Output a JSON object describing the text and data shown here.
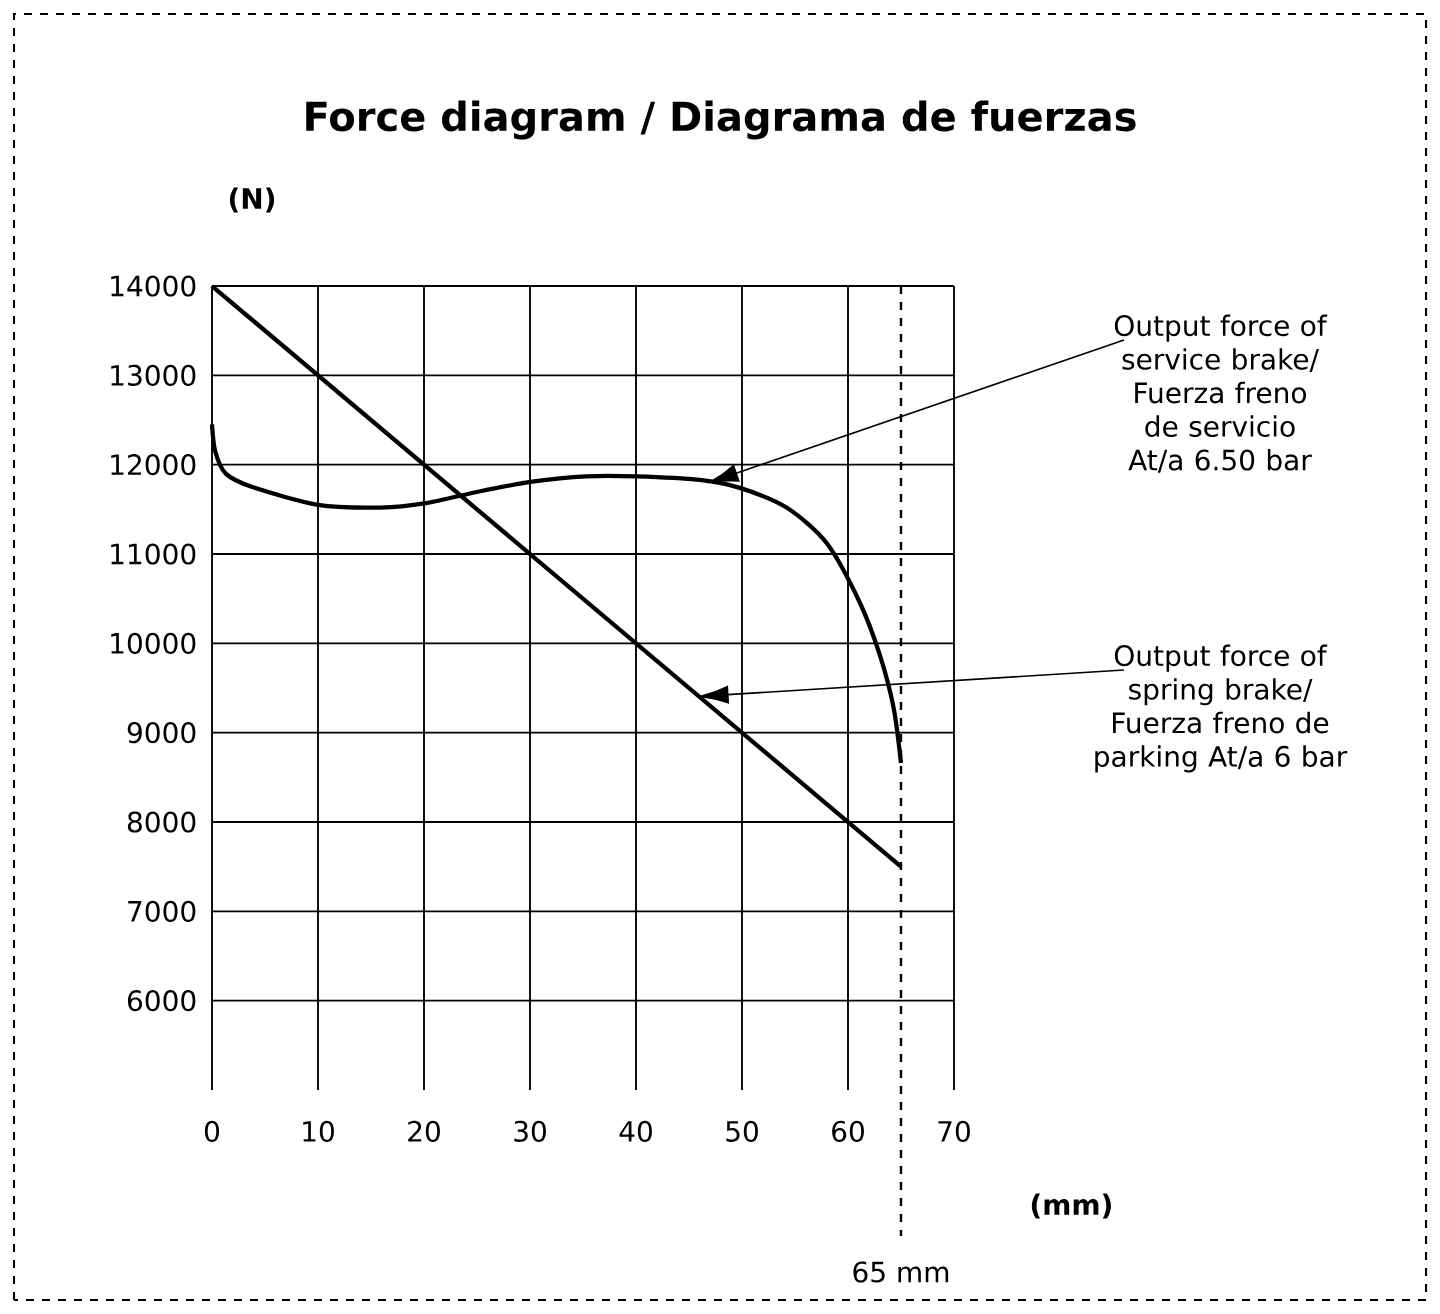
{
  "chart_data": {
    "type": "line",
    "title": "Force diagram / Diagrama de fuerzas",
    "xlabel": "(mm)",
    "ylabel": "(N)",
    "xlim": [
      0,
      70
    ],
    "xticks": [
      0,
      10,
      20,
      30,
      40,
      50,
      60,
      70
    ],
    "ylim": [
      5000,
      14000
    ],
    "yticks": [
      6000,
      7000,
      8000,
      9000,
      10000,
      11000,
      12000,
      13000,
      14000
    ],
    "grid": true,
    "marker": "none",
    "line_style": "solid",
    "series": [
      {
        "color": "#000000",
        "x": [
          0,
          0.3,
          1.3,
          3.8,
          10,
          15.8,
          20.2,
          25.2,
          30.2,
          35.3,
          40,
          46,
          49.8,
          54.2,
          58,
          61.1,
          63,
          64.3,
          65
        ],
        "values": [
          12450,
          12150,
          11900,
          11750,
          11550,
          11520,
          11570,
          11700,
          11810,
          11870,
          11870,
          11830,
          11740,
          11520,
          11120,
          10460,
          9870,
          9280,
          8660
        ]
      },
      {
        "color": "#000000",
        "x": [
          0,
          65
        ],
        "values": [
          14000,
          7500
        ]
      }
    ],
    "annotations": [
      "Output force of service brake/ Fuerza freno de servicio At/a 6.50 bar",
      "Output force of spring brake/ Fuerza freno de parking At/a 6 bar"
    ],
    "ref_lines": [
      {
        "axis": "x",
        "value": 65,
        "label": "65 mm",
        "line_style": "dashed",
        "color": "#000000"
      }
    ]
  }
}
